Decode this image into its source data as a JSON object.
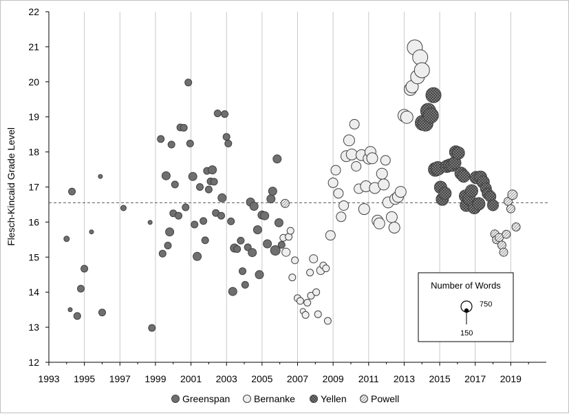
{
  "chart_data": {
    "type": "scatter",
    "title": "",
    "xlabel": "",
    "ylabel": "Flesch-Kincaid Grade Level",
    "xlim": [
      1993,
      2021
    ],
    "ylim": [
      12,
      22
    ],
    "x_ticks": [
      "1993",
      "1995",
      "1997",
      "1999",
      "2001",
      "2003",
      "2005",
      "2007",
      "2009",
      "2011",
      "2013",
      "2015",
      "2017",
      "2019"
    ],
    "y_ticks": [
      "12",
      "13",
      "14",
      "15",
      "16",
      "17",
      "18",
      "19",
      "20",
      "21",
      "22"
    ],
    "grid": "vertical",
    "reference_line": 16.55,
    "legend_position": "bottom",
    "size_legend": {
      "title": "Number of Words",
      "large_label": "750",
      "small_label": "150"
    },
    "colors": {
      "Greenspan": "#6f6f6f",
      "Bernanke": "#eeeeee",
      "Yellen": "#7a7a7a",
      "Powell": "#f2f2f2",
      "edge": "#404040"
    },
    "series": [
      {
        "name": "Greenspan",
        "pattern": "solid-dark",
        "points": [
          {
            "x": 1994.0,
            "y": 15.52,
            "r": 4
          },
          {
            "x": 1994.3,
            "y": 16.87,
            "r": 5
          },
          {
            "x": 1994.2,
            "y": 13.5,
            "r": 3
          },
          {
            "x": 1994.6,
            "y": 13.32,
            "r": 5
          },
          {
            "x": 1994.8,
            "y": 14.1,
            "r": 5
          },
          {
            "x": 1995.0,
            "y": 14.67,
            "r": 5
          },
          {
            "x": 1995.4,
            "y": 15.72,
            "r": 3
          },
          {
            "x": 1995.9,
            "y": 17.3,
            "r": 3
          },
          {
            "x": 1996.0,
            "y": 13.42,
            "r": 5
          },
          {
            "x": 1997.2,
            "y": 16.4,
            "r": 4
          },
          {
            "x": 1998.7,
            "y": 15.99,
            "r": 3
          },
          {
            "x": 1998.8,
            "y": 12.98,
            "r": 5
          },
          {
            "x": 1999.3,
            "y": 18.37,
            "r": 5
          },
          {
            "x": 1999.4,
            "y": 15.1,
            "r": 5
          },
          {
            "x": 1999.6,
            "y": 17.32,
            "r": 6
          },
          {
            "x": 1999.7,
            "y": 15.33,
            "r": 5
          },
          {
            "x": 1999.8,
            "y": 15.72,
            "r": 6
          },
          {
            "x": 1999.9,
            "y": 18.21,
            "r": 5
          },
          {
            "x": 2000.0,
            "y": 16.25,
            "r": 5
          },
          {
            "x": 2000.1,
            "y": 17.07,
            "r": 5
          },
          {
            "x": 2000.3,
            "y": 16.18,
            "r": 5
          },
          {
            "x": 2000.4,
            "y": 18.7,
            "r": 5
          },
          {
            "x": 2000.6,
            "y": 18.69,
            "r": 5
          },
          {
            "x": 2000.7,
            "y": 16.42,
            "r": 5
          },
          {
            "x": 2000.85,
            "y": 19.98,
            "r": 5
          },
          {
            "x": 2000.95,
            "y": 18.24,
            "r": 5
          },
          {
            "x": 2001.1,
            "y": 17.3,
            "r": 6
          },
          {
            "x": 2001.2,
            "y": 15.93,
            "r": 5
          },
          {
            "x": 2001.35,
            "y": 15.02,
            "r": 6
          },
          {
            "x": 2001.5,
            "y": 17.0,
            "r": 5
          },
          {
            "x": 2001.7,
            "y": 16.03,
            "r": 5
          },
          {
            "x": 2001.8,
            "y": 15.48,
            "r": 5
          },
          {
            "x": 2001.9,
            "y": 17.46,
            "r": 5
          },
          {
            "x": 2002.0,
            "y": 16.93,
            "r": 5
          },
          {
            "x": 2002.1,
            "y": 17.16,
            "r": 5
          },
          {
            "x": 2002.2,
            "y": 17.49,
            "r": 6
          },
          {
            "x": 2002.3,
            "y": 17.15,
            "r": 5
          },
          {
            "x": 2002.4,
            "y": 16.26,
            "r": 5
          },
          {
            "x": 2002.5,
            "y": 19.1,
            "r": 5
          },
          {
            "x": 2002.7,
            "y": 16.18,
            "r": 5
          },
          {
            "x": 2002.75,
            "y": 16.69,
            "r": 6
          },
          {
            "x": 2002.9,
            "y": 19.08,
            "r": 5
          },
          {
            "x": 2003.0,
            "y": 18.43,
            "r": 5
          },
          {
            "x": 2003.1,
            "y": 18.24,
            "r": 5
          },
          {
            "x": 2003.25,
            "y": 16.02,
            "r": 5
          },
          {
            "x": 2003.35,
            "y": 14.02,
            "r": 6
          },
          {
            "x": 2003.45,
            "y": 15.26,
            "r": 6
          },
          {
            "x": 2003.6,
            "y": 15.23,
            "r": 5
          },
          {
            "x": 2003.8,
            "y": 15.47,
            "r": 5
          },
          {
            "x": 2003.9,
            "y": 14.6,
            "r": 5
          },
          {
            "x": 2004.05,
            "y": 14.21,
            "r": 5
          },
          {
            "x": 2004.2,
            "y": 15.28,
            "r": 5
          },
          {
            "x": 2004.35,
            "y": 16.57,
            "r": 6
          },
          {
            "x": 2004.45,
            "y": 15.13,
            "r": 6
          },
          {
            "x": 2004.55,
            "y": 16.45,
            "r": 6
          },
          {
            "x": 2004.75,
            "y": 15.78,
            "r": 6
          },
          {
            "x": 2004.85,
            "y": 14.5,
            "r": 6
          },
          {
            "x": 2005.0,
            "y": 16.2,
            "r": 6
          },
          {
            "x": 2005.15,
            "y": 16.18,
            "r": 6
          },
          {
            "x": 2005.3,
            "y": 15.38,
            "r": 6
          },
          {
            "x": 2005.5,
            "y": 16.66,
            "r": 6
          },
          {
            "x": 2005.6,
            "y": 16.88,
            "r": 6
          },
          {
            "x": 2005.75,
            "y": 15.19,
            "r": 7
          },
          {
            "x": 2005.85,
            "y": 17.8,
            "r": 6
          },
          {
            "x": 2005.95,
            "y": 15.98,
            "r": 6
          },
          {
            "x": 2006.1,
            "y": 15.35,
            "r": 5
          }
        ]
      },
      {
        "name": "Bernanke",
        "pattern": "solid-light",
        "points": [
          {
            "x": 2006.2,
            "y": 15.55,
            "r": 5
          },
          {
            "x": 2006.35,
            "y": 15.14,
            "r": 6
          },
          {
            "x": 2006.5,
            "y": 15.58,
            "r": 5
          },
          {
            "x": 2006.6,
            "y": 15.75,
            "r": 5
          },
          {
            "x": 2006.7,
            "y": 14.42,
            "r": 5
          },
          {
            "x": 2006.85,
            "y": 14.91,
            "r": 5
          },
          {
            "x": 2007.0,
            "y": 13.83,
            "r": 5
          },
          {
            "x": 2007.15,
            "y": 13.75,
            "r": 5
          },
          {
            "x": 2007.3,
            "y": 13.46,
            "r": 4
          },
          {
            "x": 2007.45,
            "y": 13.35,
            "r": 5
          },
          {
            "x": 2007.55,
            "y": 13.7,
            "r": 5
          },
          {
            "x": 2007.7,
            "y": 14.56,
            "r": 5
          },
          {
            "x": 2007.75,
            "y": 13.9,
            "r": 5
          },
          {
            "x": 2007.9,
            "y": 14.95,
            "r": 6
          },
          {
            "x": 2008.05,
            "y": 14.0,
            "r": 5
          },
          {
            "x": 2008.15,
            "y": 13.37,
            "r": 5
          },
          {
            "x": 2008.3,
            "y": 14.62,
            "r": 6
          },
          {
            "x": 2008.45,
            "y": 14.76,
            "r": 5
          },
          {
            "x": 2008.6,
            "y": 14.68,
            "r": 5
          },
          {
            "x": 2008.7,
            "y": 13.18,
            "r": 5
          },
          {
            "x": 2008.85,
            "y": 15.62,
            "r": 7
          },
          {
            "x": 2009.0,
            "y": 17.12,
            "r": 7
          },
          {
            "x": 2009.15,
            "y": 17.48,
            "r": 7
          },
          {
            "x": 2009.3,
            "y": 16.82,
            "r": 7
          },
          {
            "x": 2009.45,
            "y": 16.15,
            "r": 7
          },
          {
            "x": 2009.6,
            "y": 16.47,
            "r": 7
          },
          {
            "x": 2009.75,
            "y": 17.88,
            "r": 8
          },
          {
            "x": 2009.9,
            "y": 18.33,
            "r": 8
          },
          {
            "x": 2010.05,
            "y": 17.93,
            "r": 8
          },
          {
            "x": 2010.2,
            "y": 18.79,
            "r": 7
          },
          {
            "x": 2010.3,
            "y": 17.59,
            "r": 7
          },
          {
            "x": 2010.45,
            "y": 16.95,
            "r": 7
          },
          {
            "x": 2010.6,
            "y": 17.91,
            "r": 8
          },
          {
            "x": 2010.75,
            "y": 16.37,
            "r": 8
          },
          {
            "x": 2010.85,
            "y": 17.02,
            "r": 8
          },
          {
            "x": 2011.0,
            "y": 17.81,
            "r": 8
          },
          {
            "x": 2011.1,
            "y": 18.0,
            "r": 8
          },
          {
            "x": 2011.2,
            "y": 17.82,
            "r": 8
          },
          {
            "x": 2011.35,
            "y": 16.97,
            "r": 8
          },
          {
            "x": 2011.5,
            "y": 16.04,
            "r": 8
          },
          {
            "x": 2011.6,
            "y": 15.96,
            "r": 8
          },
          {
            "x": 2011.75,
            "y": 17.38,
            "r": 8
          },
          {
            "x": 2011.85,
            "y": 17.07,
            "r": 8
          },
          {
            "x": 2011.95,
            "y": 17.76,
            "r": 7
          },
          {
            "x": 2012.1,
            "y": 16.56,
            "r": 8
          },
          {
            "x": 2012.3,
            "y": 16.14,
            "r": 8
          },
          {
            "x": 2012.45,
            "y": 15.84,
            "r": 8
          },
          {
            "x": 2012.5,
            "y": 16.66,
            "r": 8
          },
          {
            "x": 2012.65,
            "y": 16.72,
            "r": 8
          },
          {
            "x": 2012.8,
            "y": 16.86,
            "r": 8
          },
          {
            "x": 2013.0,
            "y": 19.04,
            "r": 9
          },
          {
            "x": 2013.15,
            "y": 18.99,
            "r": 9
          },
          {
            "x": 2013.35,
            "y": 19.79,
            "r": 9
          },
          {
            "x": 2013.45,
            "y": 19.86,
            "r": 9
          },
          {
            "x": 2013.6,
            "y": 20.98,
            "r": 11
          },
          {
            "x": 2013.75,
            "y": 20.14,
            "r": 10
          },
          {
            "x": 2013.9,
            "y": 20.7,
            "r": 11
          },
          {
            "x": 2014.0,
            "y": 20.33,
            "r": 11
          }
        ]
      },
      {
        "name": "Yellen",
        "pattern": "crosshatch-dark",
        "points": [
          {
            "x": 2014.05,
            "y": 18.83,
            "r": 11
          },
          {
            "x": 2014.2,
            "y": 18.81,
            "r": 11
          },
          {
            "x": 2014.35,
            "y": 19.17,
            "r": 11
          },
          {
            "x": 2014.5,
            "y": 19.04,
            "r": 11
          },
          {
            "x": 2014.65,
            "y": 19.62,
            "r": 11
          },
          {
            "x": 2014.75,
            "y": 17.5,
            "r": 10
          },
          {
            "x": 2014.9,
            "y": 17.53,
            "r": 10
          },
          {
            "x": 2015.05,
            "y": 16.99,
            "r": 9
          },
          {
            "x": 2015.15,
            "y": 16.65,
            "r": 9
          },
          {
            "x": 2015.3,
            "y": 16.82,
            "r": 9
          },
          {
            "x": 2015.4,
            "y": 17.59,
            "r": 9
          },
          {
            "x": 2015.55,
            "y": 17.62,
            "r": 9
          },
          {
            "x": 2015.7,
            "y": 17.62,
            "r": 9
          },
          {
            "x": 2015.85,
            "y": 17.69,
            "r": 9
          },
          {
            "x": 2015.9,
            "y": 18.0,
            "r": 9
          },
          {
            "x": 2016.05,
            "y": 17.97,
            "r": 9
          },
          {
            "x": 2016.2,
            "y": 17.39,
            "r": 9
          },
          {
            "x": 2016.35,
            "y": 17.31,
            "r": 9
          },
          {
            "x": 2016.45,
            "y": 16.74,
            "r": 9
          },
          {
            "x": 2016.5,
            "y": 16.48,
            "r": 9
          },
          {
            "x": 2016.65,
            "y": 16.67,
            "r": 9
          },
          {
            "x": 2016.8,
            "y": 16.89,
            "r": 9
          },
          {
            "x": 2016.95,
            "y": 16.41,
            "r": 9
          },
          {
            "x": 2017.05,
            "y": 17.27,
            "r": 9
          },
          {
            "x": 2017.2,
            "y": 16.52,
            "r": 9
          },
          {
            "x": 2017.3,
            "y": 17.28,
            "r": 9
          },
          {
            "x": 2017.45,
            "y": 17.14,
            "r": 9
          },
          {
            "x": 2017.6,
            "y": 16.96,
            "r": 8
          },
          {
            "x": 2017.7,
            "y": 16.81,
            "r": 8
          },
          {
            "x": 2017.85,
            "y": 16.73,
            "r": 8
          },
          {
            "x": 2018.0,
            "y": 16.48,
            "r": 8
          }
        ]
      },
      {
        "name": "Powell",
        "pattern": "diagonal-light",
        "points": [
          {
            "x": 2006.3,
            "y": 16.53,
            "r": 6
          },
          {
            "x": 2018.1,
            "y": 15.66,
            "r": 6
          },
          {
            "x": 2018.2,
            "y": 15.5,
            "r": 6
          },
          {
            "x": 2018.35,
            "y": 15.56,
            "r": 6
          },
          {
            "x": 2018.5,
            "y": 15.34,
            "r": 6
          },
          {
            "x": 2018.6,
            "y": 15.14,
            "r": 6
          },
          {
            "x": 2018.75,
            "y": 15.65,
            "r": 6
          },
          {
            "x": 2018.85,
            "y": 16.59,
            "r": 6
          },
          {
            "x": 2019.0,
            "y": 16.38,
            "r": 6
          },
          {
            "x": 2019.1,
            "y": 16.78,
            "r": 7
          },
          {
            "x": 2019.3,
            "y": 15.86,
            "r": 6
          }
        ]
      }
    ]
  }
}
